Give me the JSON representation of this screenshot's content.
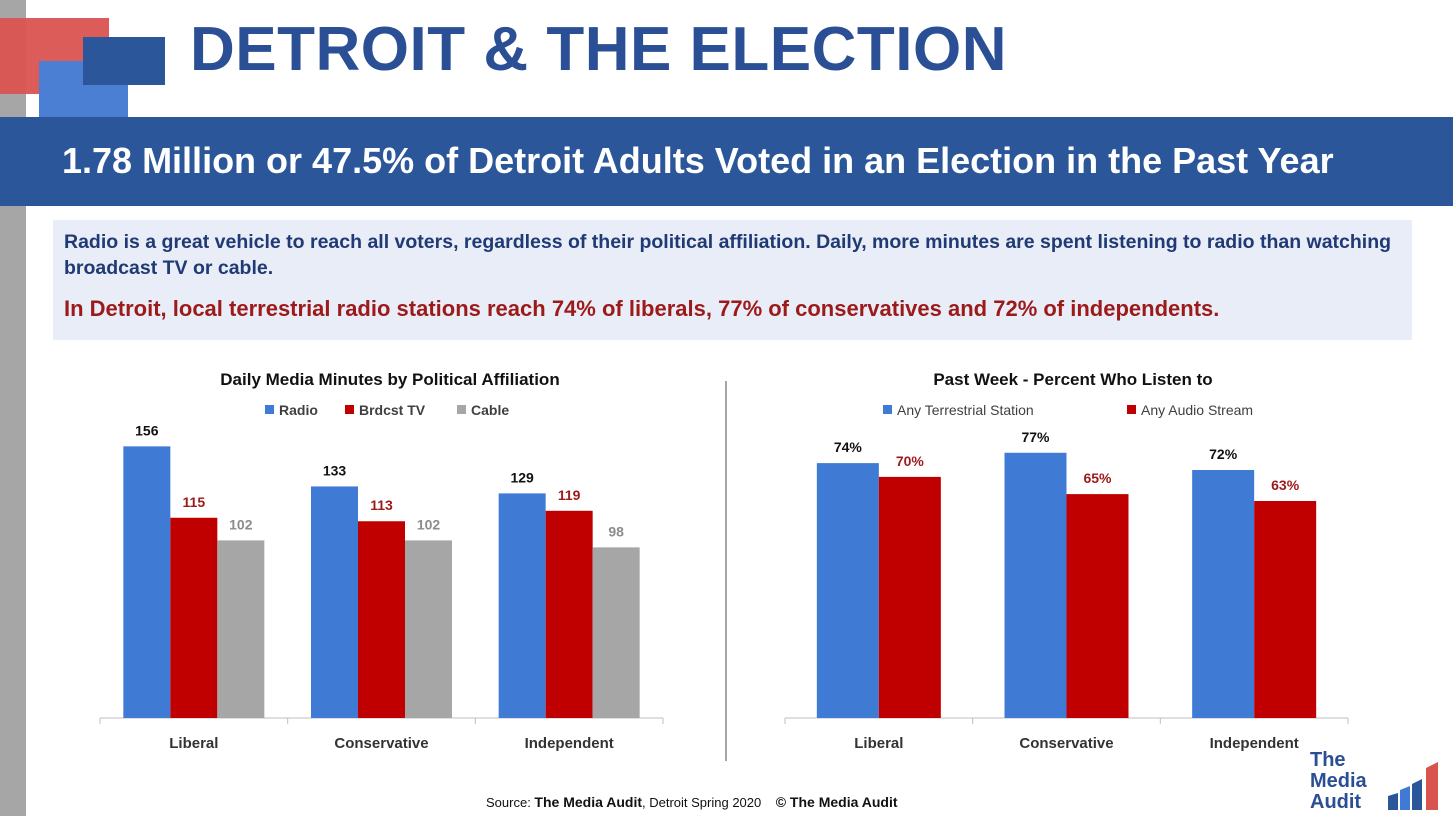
{
  "title": "DETROIT & THE ELECTION",
  "banner": "1.78 Million or 47.5% of Detroit Adults Voted in an Election in the Past Year",
  "info": {
    "line1": "Radio is a great vehicle to reach all voters, regardless of their political affiliation. Daily, more minutes are spent listening to radio than watching broadcast TV or cable.",
    "line2": "In Detroit, local terrestrial radio stations reach 74% of liberals, 77% of conservatives and 72% of independents."
  },
  "footer": {
    "source_prefix": "Source: ",
    "source_brand": "The Media Audit",
    "source_rest": ", Detroit Spring 2020",
    "copyright": "© The Media Audit"
  },
  "logo": {
    "line1": "The",
    "line2": "Media",
    "line3": "Audit"
  },
  "colors": {
    "blue": "#3f7bd4",
    "red": "#c00000",
    "gray": "#a6a6a6",
    "navy": "#2b579a"
  },
  "chart_data": [
    {
      "type": "bar",
      "title": "Daily Media Minutes by Political Affiliation",
      "categories": [
        "Liberal",
        "Conservative",
        "Independent"
      ],
      "series": [
        {
          "name": "Radio",
          "values": [
            156,
            133,
            129
          ],
          "color": "#3f7bd4",
          "label_color": "#111111"
        },
        {
          "name": "Brdcst TV",
          "values": [
            115,
            113,
            119
          ],
          "color": "#c00000",
          "label_color": "#9c1a1a"
        },
        {
          "name": "Cable",
          "values": [
            102,
            102,
            98
          ],
          "color": "#a6a6a6",
          "label_color": "#8c8c8c"
        }
      ],
      "ylim": [
        0,
        170
      ],
      "value_suffix": "",
      "legend": "top",
      "grid": false
    },
    {
      "type": "bar",
      "title": "Past Week - Percent Who Listen to",
      "categories": [
        "Liberal",
        "Conservative",
        "Independent"
      ],
      "series": [
        {
          "name": "Any Terrestrial Station",
          "values": [
            74,
            77,
            72
          ],
          "color": "#3f7bd4",
          "label_color": "#111111"
        },
        {
          "name": "Any Audio Stream",
          "values": [
            70,
            65,
            63
          ],
          "color": "#c00000",
          "label_color": "#9c1a1a"
        }
      ],
      "ylim": [
        0,
        90
      ],
      "value_suffix": "%",
      "legend": "top",
      "grid": false
    }
  ]
}
